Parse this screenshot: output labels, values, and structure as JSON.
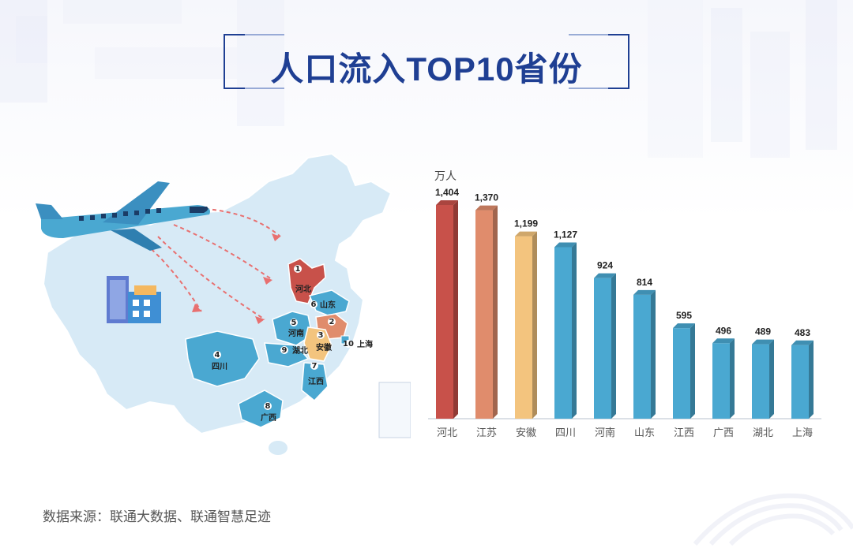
{
  "title": "人口流入TOP10省份",
  "source": "数据来源：联通大数据、联通智慧足迹",
  "map": {
    "labels": [
      {
        "rank": "1",
        "name": "河北"
      },
      {
        "rank": "2",
        "name": "江苏"
      },
      {
        "rank": "3",
        "name": "安徽"
      },
      {
        "rank": "4",
        "name": "四川"
      },
      {
        "rank": "5",
        "name": "河南"
      },
      {
        "rank": "6",
        "name": "山东"
      },
      {
        "rank": "7",
        "name": "江西"
      },
      {
        "rank": "8",
        "name": "广西"
      },
      {
        "rank": "9",
        "name": "湖北"
      },
      {
        "rank": "10",
        "name": "上海"
      }
    ]
  },
  "chart_data": {
    "type": "bar",
    "ylabel": "万人",
    "categories": [
      "河北",
      "江苏",
      "安徽",
      "四川",
      "河南",
      "山东",
      "江西",
      "广西",
      "湖北",
      "上海"
    ],
    "values": [
      1404,
      1370,
      1199,
      1127,
      924,
      814,
      595,
      496,
      489,
      483
    ],
    "value_labels": [
      "1,404",
      "1,370",
      "1,199",
      "1,127",
      "924",
      "814",
      "595",
      "496",
      "489",
      "483"
    ],
    "ylim": [
      0,
      1404
    ],
    "grid": false,
    "colors": [
      "#c8514a",
      "#e08c6c",
      "#f3c47e",
      "#4aa8d1",
      "#4aa8d1",
      "#4aa8d1",
      "#4aa8d1",
      "#4aa8d1",
      "#4aa8d1",
      "#4aa8d1"
    ]
  }
}
